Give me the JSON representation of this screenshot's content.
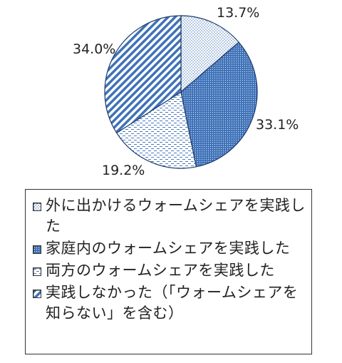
{
  "chart_data": {
    "type": "pie",
    "slices": [
      {
        "label": "外に出かけるウォームシェアを実践した",
        "value": 13.7,
        "display": "13.7%",
        "pattern": "dots",
        "color": "#5b86c4"
      },
      {
        "label": "家庭内のウォームシェアを実践した",
        "value": 33.1,
        "display": "33.1%",
        "pattern": "dense-dots",
        "color": "#3a6fb8"
      },
      {
        "label": "両方のウォームシェアを実践した",
        "value": 19.2,
        "display": "19.2%",
        "pattern": "dashes",
        "color": "#5b86c4"
      },
      {
        "label": "実践しなかった（「ウォームシェアを知らない」を含む）",
        "value": 34.0,
        "display": "34.0%",
        "pattern": "diagonal-stripes",
        "color": "#3a6fb8"
      }
    ],
    "start_angle": "12 o'clock",
    "direction": "clockwise",
    "legend_placement": "bottom"
  }
}
